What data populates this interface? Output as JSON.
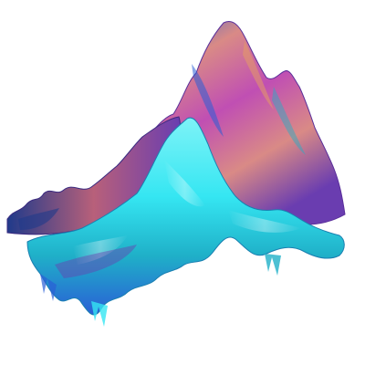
{
  "image": {
    "subject": "iridescent-terrain-sculpture",
    "background_color": "#ffffff",
    "palette": {
      "cyan": "#35e6f2",
      "deep_blue": "#2a5fd6",
      "violet": "#6a3db0",
      "magenta": "#c04fb3",
      "salmon": "#d98a86",
      "rose": "#b8607a",
      "teal": "#1fb0c8",
      "navy": "#203a8a"
    }
  }
}
